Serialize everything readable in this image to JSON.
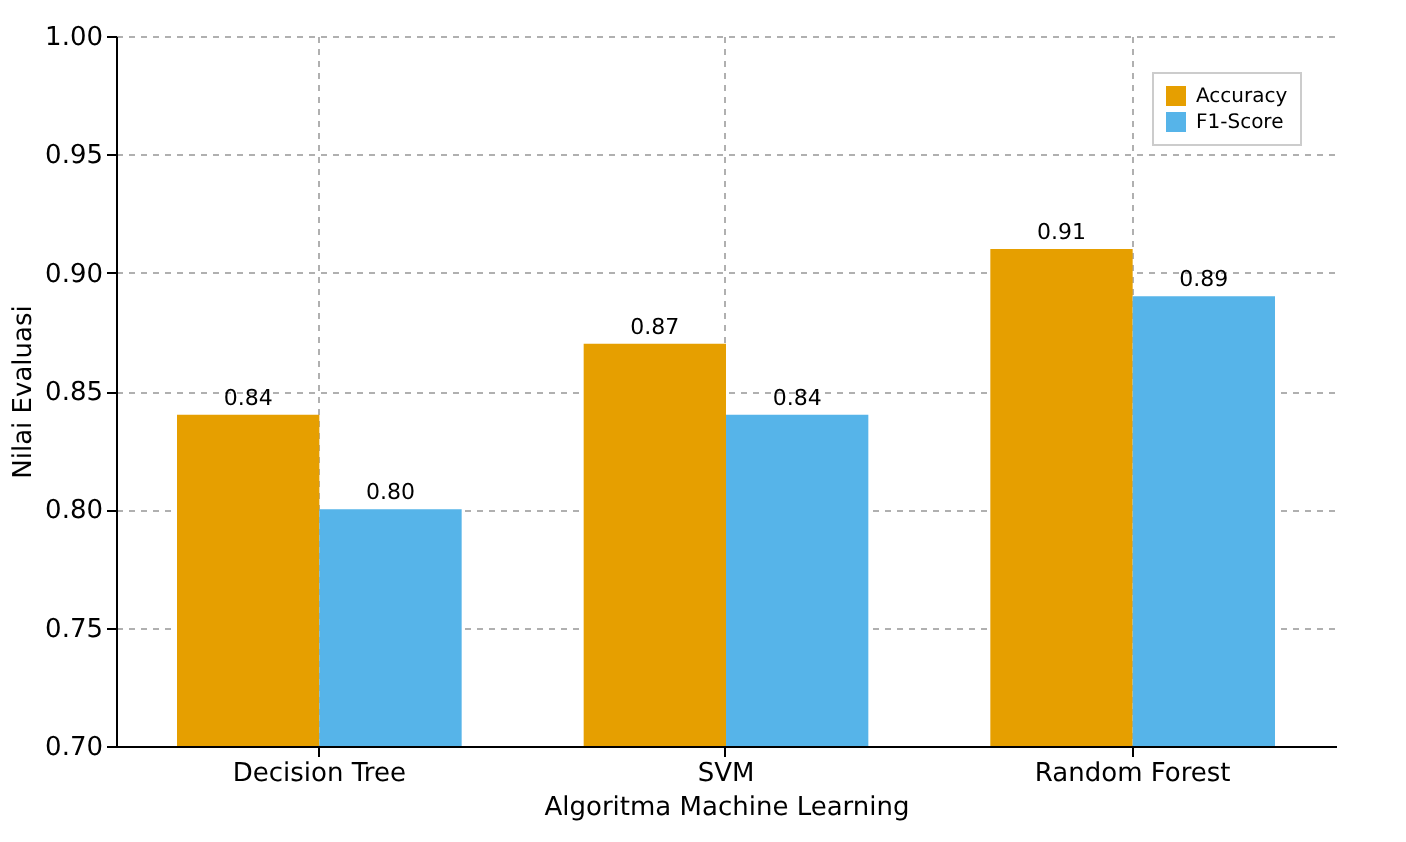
{
  "chart_data": {
    "type": "bar",
    "xlabel": "Algoritma Machine Learning",
    "ylabel": "Nilai Evaluasi",
    "categories": [
      "Decision Tree",
      "SVM",
      "Random Forest"
    ],
    "series": [
      {
        "name": "Accuracy",
        "color": "#e69f00",
        "values": [
          0.84,
          0.87,
          0.91
        ],
        "value_labels": [
          "0.84",
          "0.87",
          "0.91"
        ]
      },
      {
        "name": "F1-Score",
        "color": "#56b4e9",
        "values": [
          0.8,
          0.84,
          0.89
        ],
        "value_labels": [
          "0.80",
          "0.84",
          "0.89"
        ]
      }
    ],
    "ylim": [
      0.7,
      1.0
    ],
    "yticks": [
      {
        "value": 0.7,
        "label": "0.70"
      },
      {
        "value": 0.75,
        "label": "0.75"
      },
      {
        "value": 0.8,
        "label": "0.80"
      },
      {
        "value": 0.85,
        "label": "0.85"
      },
      {
        "value": 0.9,
        "label": "0.90"
      },
      {
        "value": 0.95,
        "label": "0.95"
      },
      {
        "value": 1.0,
        "label": "1.00"
      }
    ],
    "grid": true,
    "legend": "top right"
  }
}
